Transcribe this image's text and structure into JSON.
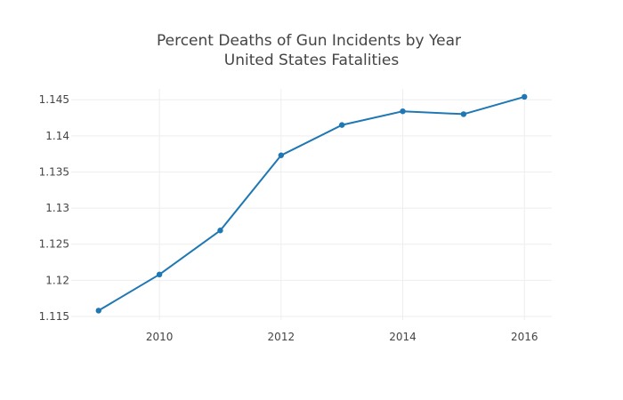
{
  "chart_data": {
    "type": "line",
    "title": "Percent Deaths of Gun Incidents by Year",
    "subtitle": "United States Fatalities",
    "xlabel": "",
    "ylabel": "",
    "xlim": [
      2008.55,
      2016.45
    ],
    "ylim": [
      1.1145,
      1.1465
    ],
    "x_ticks": [
      "2010",
      "2012",
      "2014",
      "2016"
    ],
    "y_ticks": [
      "1.115",
      "1.12",
      "1.125",
      "1.13",
      "1.135",
      "1.14",
      "1.145"
    ],
    "grid": true,
    "legend": "none",
    "series": [
      {
        "color": "#1f77b4",
        "x": [
          2009,
          2010,
          2011,
          2012,
          2013,
          2014,
          2015,
          2016
        ],
        "y": [
          1.1158,
          1.1208,
          1.1269,
          1.1373,
          1.1415,
          1.1434,
          1.143,
          1.1454
        ]
      }
    ]
  }
}
